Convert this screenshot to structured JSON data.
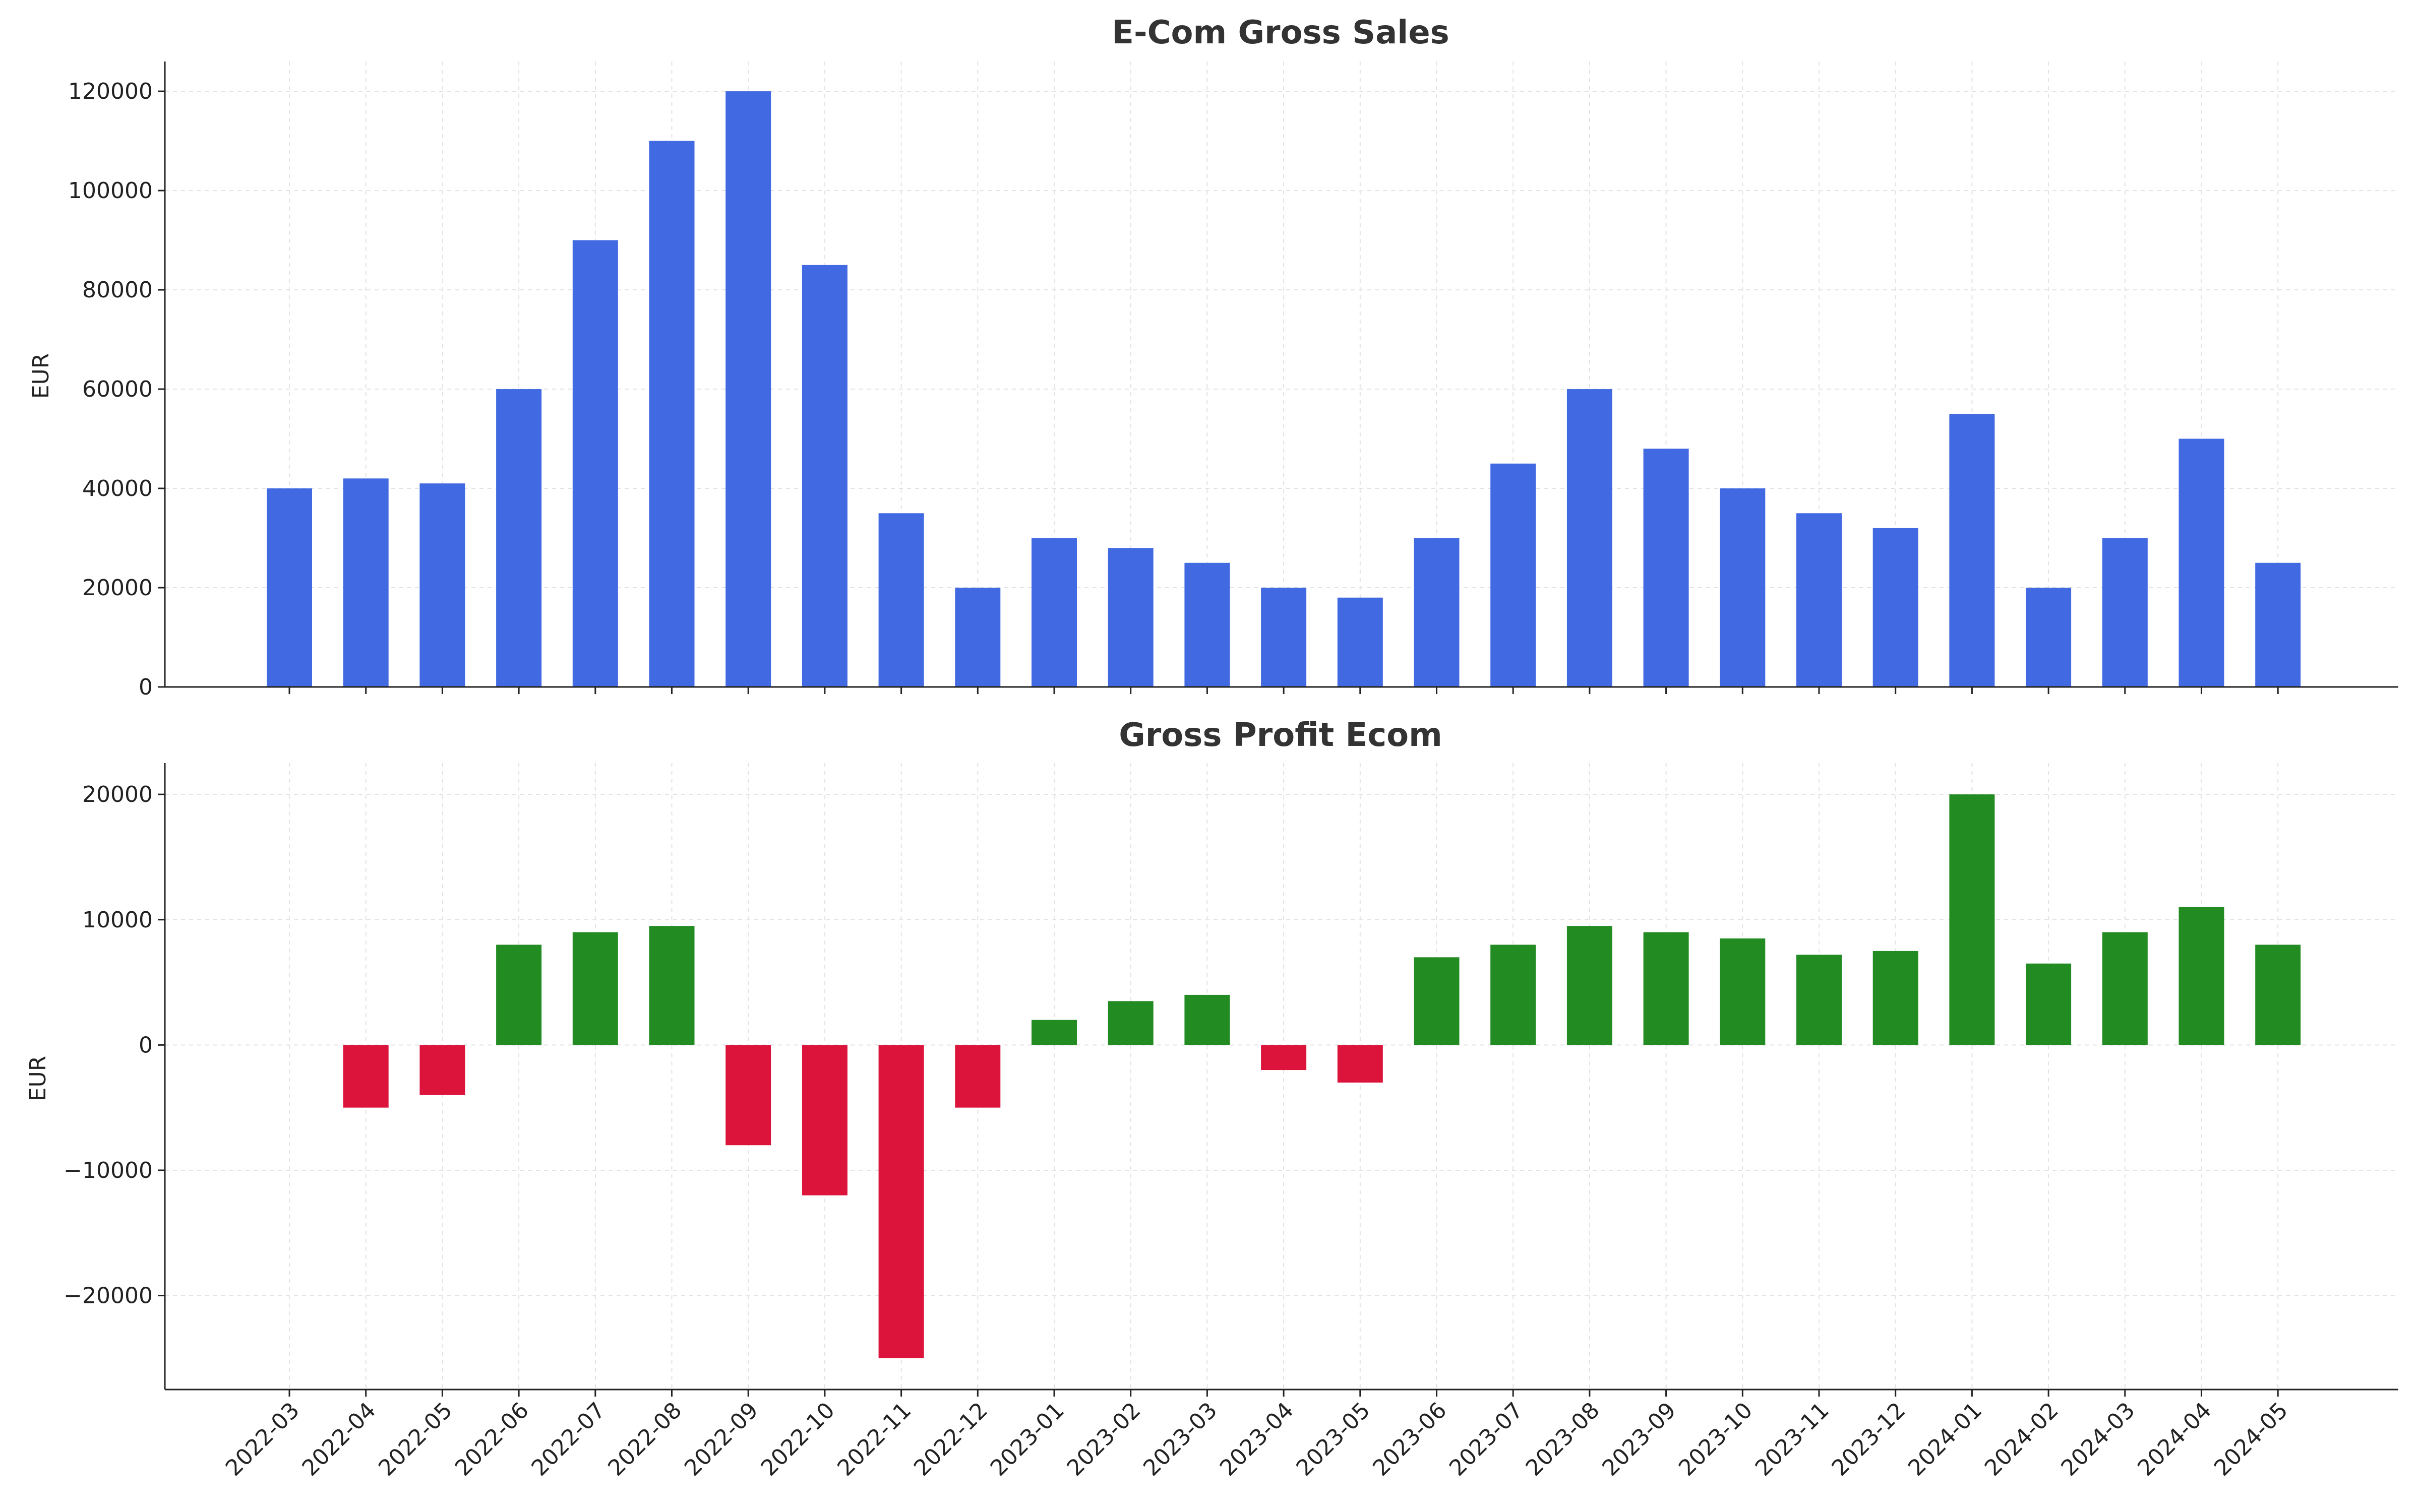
{
  "chart_data": [
    {
      "type": "bar",
      "title": "E-Com Gross Sales",
      "xlabel": "",
      "ylabel": "EUR",
      "ylim": [
        0,
        126000
      ],
      "yticks": [
        0,
        20000,
        40000,
        60000,
        80000,
        100000,
        120000
      ],
      "grid": true,
      "categories": [
        "2022-03",
        "2022-04",
        "2022-05",
        "2022-06",
        "2022-07",
        "2022-08",
        "2022-09",
        "2022-10",
        "2022-11",
        "2022-12",
        "2023-01",
        "2023-02",
        "2023-03",
        "2023-04",
        "2023-05",
        "2023-06",
        "2023-07",
        "2023-08",
        "2023-09",
        "2023-10",
        "2023-11",
        "2023-12",
        "2024-01",
        "2024-02",
        "2024-03",
        "2024-04",
        "2024-05"
      ],
      "values": [
        40000,
        42000,
        41000,
        60000,
        90000,
        110000,
        120000,
        85000,
        35000,
        20000,
        30000,
        28000,
        25000,
        20000,
        18000,
        30000,
        45000,
        60000,
        48000,
        40000,
        35000,
        32000,
        55000,
        20000,
        30000,
        50000,
        25000
      ],
      "colors": {
        "bar": "#4169e1"
      }
    },
    {
      "type": "bar",
      "title": "Gross Profit Ecom",
      "xlabel": "",
      "ylabel": "EUR",
      "ylim": [
        -27500,
        22500
      ],
      "yticks": [
        -20000,
        -10000,
        0,
        10000,
        20000
      ],
      "grid": true,
      "categories": [
        "2022-03",
        "2022-04",
        "2022-05",
        "2022-06",
        "2022-07",
        "2022-08",
        "2022-09",
        "2022-10",
        "2022-11",
        "2022-12",
        "2023-01",
        "2023-02",
        "2023-03",
        "2023-04",
        "2023-05",
        "2023-06",
        "2023-07",
        "2023-08",
        "2023-09",
        "2023-10",
        "2023-11",
        "2023-12",
        "2024-01",
        "2024-02",
        "2024-03",
        "2024-04",
        "2024-05"
      ],
      "values": [
        0,
        -5000,
        -4000,
        8000,
        9000,
        9500,
        -8000,
        -12000,
        -25000,
        -5000,
        2000,
        3500,
        4000,
        -2000,
        -3000,
        7000,
        8000,
        9500,
        9000,
        8500,
        7200,
        7500,
        20000,
        6500,
        9000,
        11000,
        8000
      ],
      "colors": {
        "positive": "#228b22",
        "negative": "#dc143c"
      }
    }
  ]
}
